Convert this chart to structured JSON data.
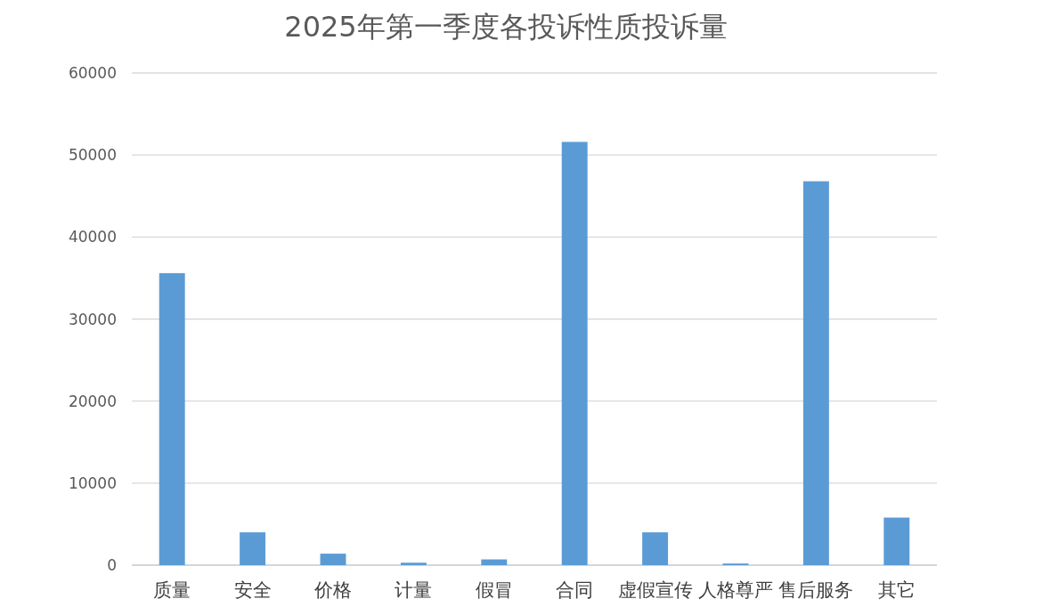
{
  "chart_data": {
    "type": "bar",
    "title": "2025年第一季度各投诉性质投诉量",
    "categories": [
      "质量",
      "安全",
      "价格",
      "计量",
      "假冒",
      "合同",
      "虚假宣传",
      "人格尊严",
      "售后服务",
      "其它"
    ],
    "values": [
      35600,
      4000,
      1400,
      300,
      700,
      51600,
      4000,
      200,
      46800,
      5800
    ],
    "color": "#5b9bd5",
    "ylim": [
      0,
      60000
    ],
    "yticks": [
      0,
      10000,
      20000,
      30000,
      40000,
      50000,
      60000
    ],
    "grid": "y"
  }
}
